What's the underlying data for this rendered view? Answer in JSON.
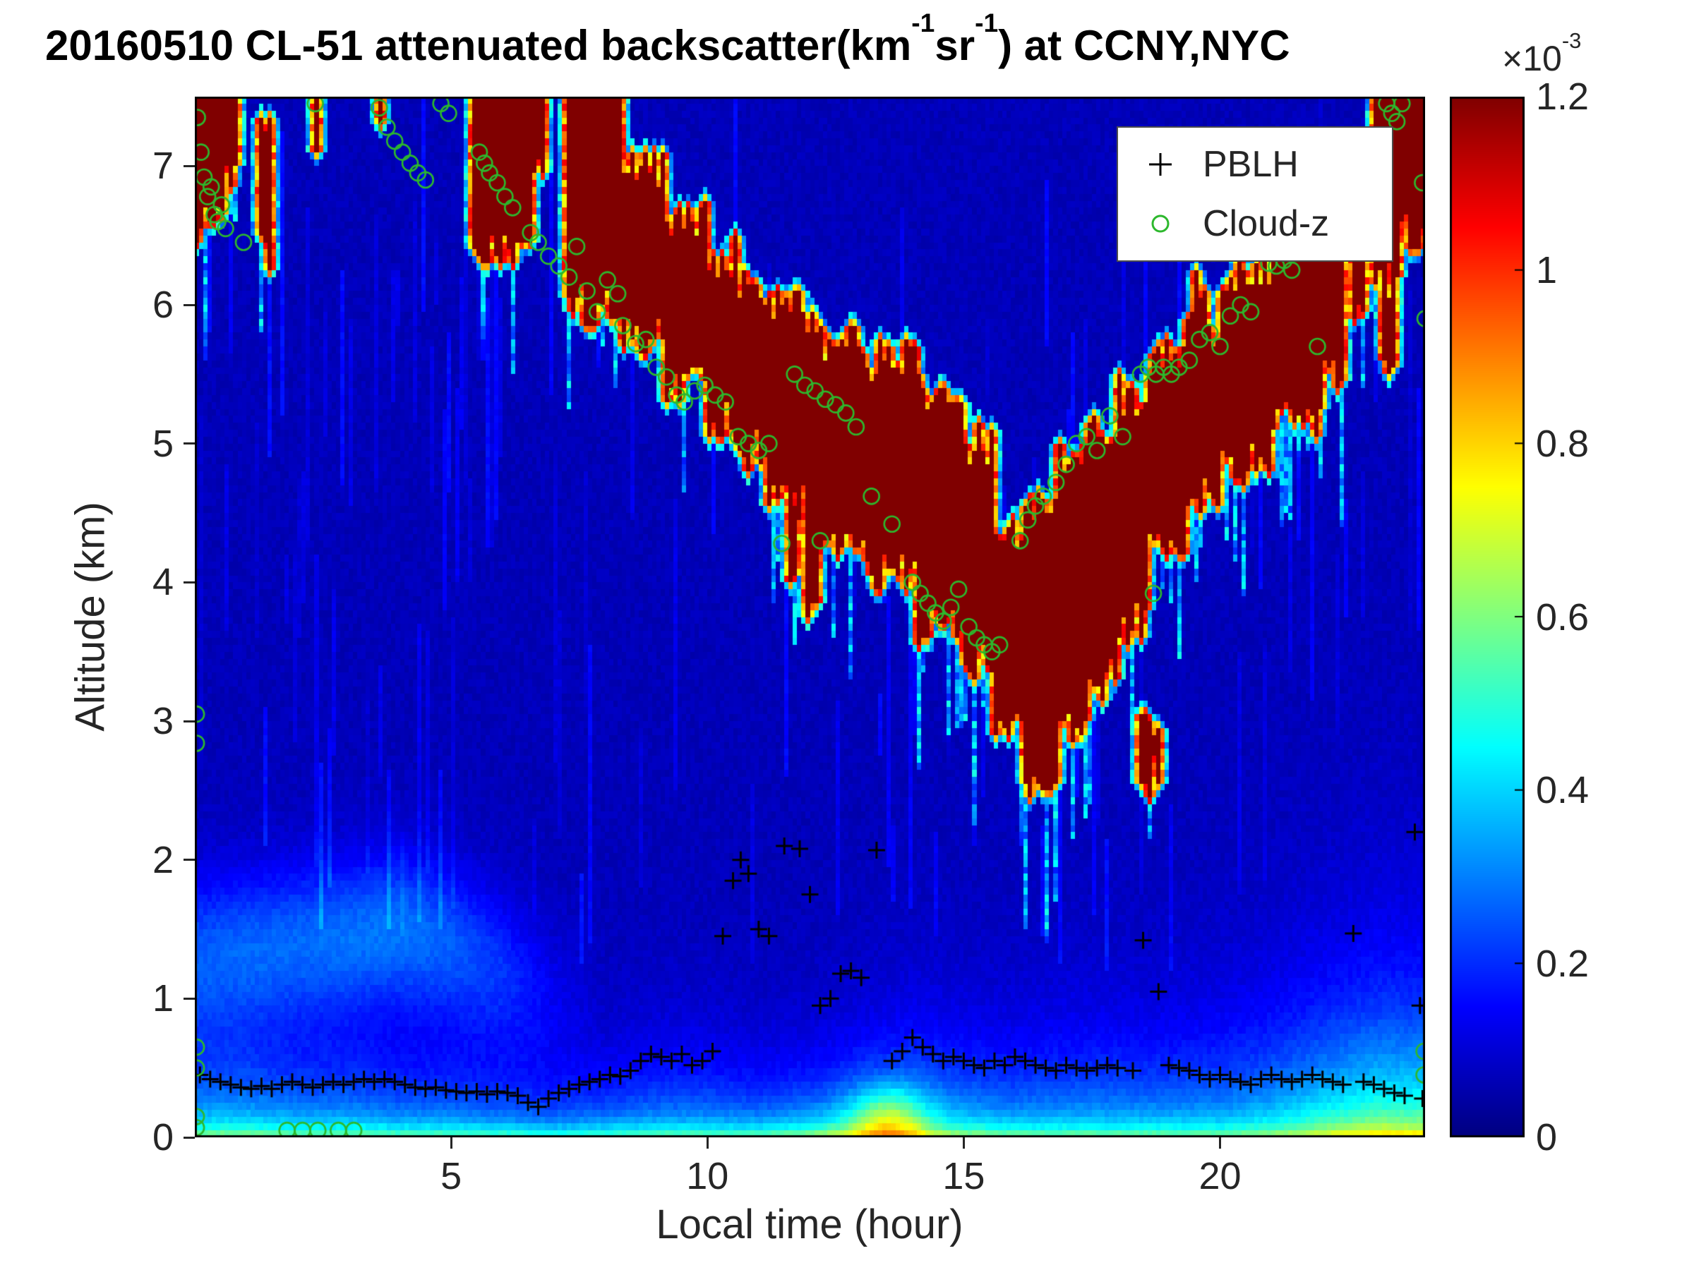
{
  "figure": {
    "title_parts": {
      "prefix": "20160510  CL-51 attenuated backscatter(km",
      "sup1": "-1",
      "mid": "sr",
      "sup2": "-1",
      "suffix": ") at CCNY,NYC"
    },
    "xlabel": "Local time (hour)",
    "ylabel": "Altitude (km)",
    "colorbar_scale_base": "×10",
    "colorbar_scale_sup": "-3"
  },
  "chart_data": {
    "type": "heatmap",
    "title": "20160510 CL-51 attenuated backscatter(km^-1 sr^-1) at CCNY,NYC",
    "xlabel": "Local time (hour)",
    "ylabel": "Altitude (km)",
    "x_range_hours": [
      0,
      24
    ],
    "y_range_km": [
      0,
      7.5
    ],
    "xticks": [
      5,
      10,
      15,
      20
    ],
    "yticks": [
      0,
      1,
      2,
      3,
      4,
      5,
      6,
      7
    ],
    "grid": false,
    "colormap": "jet",
    "colorbar": {
      "tick_values": [
        0,
        0.2,
        0.4,
        0.6,
        0.8,
        1,
        1.2
      ],
      "tick_labels": [
        "0",
        "0.2",
        "0.4",
        "0.6",
        "0.8",
        "1",
        "1.2"
      ],
      "scale_factor": "1e-3",
      "vmax_km_sr": 0.0012,
      "vmin_km_sr": 0
    },
    "legend": [
      {
        "label": "PBLH",
        "marker": "plus",
        "color": "#000000"
      },
      {
        "label": "Cloud-z",
        "marker": "circle",
        "color": "#2db82d"
      }
    ],
    "legend_position": "top-right-inside",
    "pblh_points_t_km": [
      [
        0.1,
        0.45
      ],
      [
        0.3,
        0.42
      ],
      [
        0.5,
        0.4
      ],
      [
        0.7,
        0.38
      ],
      [
        0.9,
        0.36
      ],
      [
        1.1,
        0.35
      ],
      [
        1.3,
        0.37
      ],
      [
        1.5,
        0.35
      ],
      [
        1.7,
        0.38
      ],
      [
        1.9,
        0.4
      ],
      [
        2.1,
        0.38
      ],
      [
        2.3,
        0.36
      ],
      [
        2.5,
        0.38
      ],
      [
        2.7,
        0.4
      ],
      [
        2.9,
        0.38
      ],
      [
        3.1,
        0.4
      ],
      [
        3.3,
        0.42
      ],
      [
        3.5,
        0.4
      ],
      [
        3.7,
        0.42
      ],
      [
        3.9,
        0.4
      ],
      [
        4.1,
        0.38
      ],
      [
        4.3,
        0.36
      ],
      [
        4.5,
        0.35
      ],
      [
        4.7,
        0.36
      ],
      [
        4.9,
        0.34
      ],
      [
        5.1,
        0.33
      ],
      [
        5.3,
        0.32
      ],
      [
        5.5,
        0.33
      ],
      [
        5.7,
        0.31
      ],
      [
        5.9,
        0.33
      ],
      [
        6.1,
        0.32
      ],
      [
        6.3,
        0.3
      ],
      [
        6.5,
        0.25
      ],
      [
        6.7,
        0.22
      ],
      [
        6.9,
        0.28
      ],
      [
        7.1,
        0.32
      ],
      [
        7.3,
        0.35
      ],
      [
        7.5,
        0.38
      ],
      [
        7.7,
        0.4
      ],
      [
        7.9,
        0.42
      ],
      [
        8.1,
        0.45
      ],
      [
        8.3,
        0.44
      ],
      [
        8.5,
        0.48
      ],
      [
        8.7,
        0.55
      ],
      [
        8.9,
        0.6
      ],
      [
        9.1,
        0.58
      ],
      [
        9.3,
        0.55
      ],
      [
        9.5,
        0.6
      ],
      [
        9.7,
        0.52
      ],
      [
        9.9,
        0.55
      ],
      [
        10.1,
        0.62
      ],
      [
        10.3,
        1.45
      ],
      [
        10.5,
        1.85
      ],
      [
        10.65,
        2.0
      ],
      [
        10.8,
        1.9
      ],
      [
        11.0,
        1.5
      ],
      [
        11.2,
        1.45
      ],
      [
        11.5,
        2.1
      ],
      [
        11.8,
        2.08
      ],
      [
        12.0,
        1.75
      ],
      [
        12.2,
        0.95
      ],
      [
        12.4,
        1.0
      ],
      [
        12.6,
        1.18
      ],
      [
        12.8,
        1.2
      ],
      [
        13.0,
        1.15
      ],
      [
        13.3,
        2.07
      ],
      [
        13.6,
        0.55
      ],
      [
        13.8,
        0.62
      ],
      [
        14.0,
        0.72
      ],
      [
        14.2,
        0.65
      ],
      [
        14.4,
        0.6
      ],
      [
        14.6,
        0.55
      ],
      [
        14.8,
        0.58
      ],
      [
        15.0,
        0.55
      ],
      [
        15.2,
        0.52
      ],
      [
        15.4,
        0.5
      ],
      [
        15.6,
        0.55
      ],
      [
        15.8,
        0.52
      ],
      [
        16.0,
        0.58
      ],
      [
        16.2,
        0.55
      ],
      [
        16.4,
        0.52
      ],
      [
        16.6,
        0.5
      ],
      [
        16.8,
        0.48
      ],
      [
        17.0,
        0.52
      ],
      [
        17.2,
        0.5
      ],
      [
        17.4,
        0.48
      ],
      [
        17.6,
        0.5
      ],
      [
        17.8,
        0.52
      ],
      [
        18.0,
        0.5
      ],
      [
        18.3,
        0.48
      ],
      [
        18.5,
        1.42
      ],
      [
        18.8,
        1.05
      ],
      [
        19.0,
        0.52
      ],
      [
        19.2,
        0.5
      ],
      [
        19.4,
        0.48
      ],
      [
        19.6,
        0.45
      ],
      [
        19.8,
        0.42
      ],
      [
        20.0,
        0.45
      ],
      [
        20.2,
        0.42
      ],
      [
        20.4,
        0.4
      ],
      [
        20.6,
        0.38
      ],
      [
        20.8,
        0.42
      ],
      [
        21.0,
        0.45
      ],
      [
        21.2,
        0.42
      ],
      [
        21.4,
        0.4
      ],
      [
        21.6,
        0.42
      ],
      [
        21.8,
        0.45
      ],
      [
        22.0,
        0.42
      ],
      [
        22.2,
        0.4
      ],
      [
        22.4,
        0.38
      ],
      [
        22.6,
        1.47
      ],
      [
        22.8,
        0.4
      ],
      [
        23.0,
        0.38
      ],
      [
        23.2,
        0.35
      ],
      [
        23.4,
        0.32
      ],
      [
        23.6,
        0.3
      ],
      [
        23.8,
        2.2
      ],
      [
        23.9,
        0.95
      ],
      [
        23.95,
        0.28
      ]
    ],
    "cloud_z_points_t_km": [
      [
        0.05,
        7.35
      ],
      [
        0.12,
        7.1
      ],
      [
        0.18,
        6.92
      ],
      [
        0.25,
        6.78
      ],
      [
        0.32,
        6.85
      ],
      [
        0.38,
        6.65
      ],
      [
        0.45,
        6.6
      ],
      [
        0.52,
        6.72
      ],
      [
        0.6,
        6.55
      ],
      [
        0.95,
        6.45
      ],
      [
        0.03,
        3.05
      ],
      [
        0.03,
        2.84
      ],
      [
        0.03,
        0.65
      ],
      [
        0.03,
        0.5
      ],
      [
        0.03,
        0.15
      ],
      [
        0.03,
        0.07
      ],
      [
        1.8,
        0.05
      ],
      [
        2.1,
        0.05
      ],
      [
        2.4,
        0.05
      ],
      [
        2.8,
        0.05
      ],
      [
        3.1,
        0.05
      ],
      [
        2.35,
        7.45
      ],
      [
        3.6,
        7.42
      ],
      [
        3.75,
        7.28
      ],
      [
        3.9,
        7.18
      ],
      [
        4.05,
        7.1
      ],
      [
        4.2,
        7.02
      ],
      [
        4.35,
        6.95
      ],
      [
        4.5,
        6.9
      ],
      [
        4.8,
        7.45
      ],
      [
        4.95,
        7.38
      ],
      [
        5.55,
        7.1
      ],
      [
        5.65,
        7.02
      ],
      [
        5.75,
        6.95
      ],
      [
        5.9,
        6.88
      ],
      [
        6.05,
        6.78
      ],
      [
        6.2,
        6.7
      ],
      [
        6.55,
        6.52
      ],
      [
        6.7,
        6.45
      ],
      [
        6.9,
        6.35
      ],
      [
        7.1,
        6.28
      ],
      [
        7.3,
        6.2
      ],
      [
        7.45,
        6.42
      ],
      [
        7.65,
        6.1
      ],
      [
        7.85,
        5.95
      ],
      [
        8.05,
        6.18
      ],
      [
        8.25,
        6.08
      ],
      [
        8.35,
        5.85
      ],
      [
        8.6,
        5.72
      ],
      [
        8.8,
        5.75
      ],
      [
        9.0,
        5.55
      ],
      [
        9.2,
        5.48
      ],
      [
        9.4,
        5.35
      ],
      [
        9.55,
        5.3
      ],
      [
        9.75,
        5.38
      ],
      [
        9.95,
        5.42
      ],
      [
        10.15,
        5.35
      ],
      [
        10.35,
        5.3
      ],
      [
        10.6,
        5.05
      ],
      [
        10.8,
        5.0
      ],
      [
        11.0,
        4.95
      ],
      [
        11.2,
        5.0
      ],
      [
        11.45,
        4.28
      ],
      [
        11.7,
        5.5
      ],
      [
        11.9,
        5.42
      ],
      [
        12.1,
        5.38
      ],
      [
        12.2,
        4.3
      ],
      [
        12.3,
        5.32
      ],
      [
        12.5,
        5.28
      ],
      [
        12.7,
        5.22
      ],
      [
        12.9,
        5.12
      ],
      [
        13.2,
        4.62
      ],
      [
        13.6,
        4.42
      ],
      [
        14.0,
        4.0
      ],
      [
        14.15,
        3.92
      ],
      [
        14.3,
        3.85
      ],
      [
        14.45,
        3.78
      ],
      [
        14.6,
        3.72
      ],
      [
        14.75,
        3.82
      ],
      [
        14.9,
        3.95
      ],
      [
        15.1,
        3.68
      ],
      [
        15.25,
        3.6
      ],
      [
        15.4,
        3.55
      ],
      [
        15.55,
        3.5
      ],
      [
        15.7,
        3.55
      ],
      [
        16.1,
        4.3
      ],
      [
        16.25,
        4.45
      ],
      [
        16.4,
        4.55
      ],
      [
        16.55,
        4.62
      ],
      [
        16.8,
        4.72
      ],
      [
        17.0,
        4.85
      ],
      [
        17.2,
        5.0
      ],
      [
        17.4,
        5.05
      ],
      [
        17.6,
        4.95
      ],
      [
        17.85,
        5.2
      ],
      [
        18.1,
        5.05
      ],
      [
        18.45,
        5.5
      ],
      [
        18.6,
        5.55
      ],
      [
        18.7,
        3.92
      ],
      [
        18.75,
        5.5
      ],
      [
        18.9,
        5.55
      ],
      [
        19.05,
        5.5
      ],
      [
        19.2,
        5.55
      ],
      [
        19.4,
        5.6
      ],
      [
        19.6,
        5.75
      ],
      [
        19.8,
        5.8
      ],
      [
        20.0,
        5.7
      ],
      [
        20.2,
        5.92
      ],
      [
        20.4,
        6.0
      ],
      [
        20.6,
        5.95
      ],
      [
        20.95,
        6.3
      ],
      [
        21.1,
        6.28
      ],
      [
        21.25,
        6.32
      ],
      [
        21.4,
        6.25
      ],
      [
        21.9,
        5.7
      ],
      [
        23.25,
        7.45
      ],
      [
        23.35,
        7.38
      ],
      [
        23.45,
        7.32
      ],
      [
        23.55,
        7.45
      ],
      [
        23.95,
        6.88
      ],
      [
        24.0,
        5.9
      ],
      [
        23.98,
        0.62
      ],
      [
        23.98,
        0.45
      ]
    ],
    "cloud_regions_t0_t1_zbase_ztop": [
      [
        0.0,
        0.6,
        6.55,
        7.5
      ],
      [
        0.6,
        0.85,
        6.9,
        7.5
      ],
      [
        1.25,
        1.5,
        6.35,
        7.25
      ],
      [
        2.3,
        2.45,
        7.05,
        7.5
      ],
      [
        3.55,
        3.7,
        7.3,
        7.5
      ],
      [
        5.45,
        6.55,
        6.35,
        7.5
      ],
      [
        6.55,
        6.8,
        6.9,
        7.5
      ],
      [
        7.25,
        8.35,
        6.0,
        7.5
      ],
      [
        8.35,
        9.2,
        5.75,
        7.0
      ],
      [
        9.2,
        10.0,
        5.4,
        6.6
      ],
      [
        10.0,
        10.6,
        5.15,
        6.35
      ],
      [
        10.6,
        11.2,
        4.95,
        6.1
      ],
      [
        11.2,
        11.9,
        4.6,
        5.95
      ],
      [
        11.55,
        11.75,
        4.0,
        4.6
      ],
      [
        11.9,
        12.15,
        3.75,
        5.8
      ],
      [
        12.15,
        13.1,
        4.35,
        5.75
      ],
      [
        13.1,
        14.1,
        4.05,
        5.6
      ],
      [
        14.1,
        15.0,
        3.7,
        5.35
      ],
      [
        15.0,
        15.6,
        3.45,
        5.0
      ],
      [
        15.6,
        16.2,
        3.0,
        4.4
      ],
      [
        16.2,
        16.8,
        2.55,
        4.5
      ],
      [
        16.8,
        17.4,
        2.9,
        4.9
      ],
      [
        17.4,
        18.0,
        3.3,
        5.1
      ],
      [
        18.0,
        18.6,
        3.7,
        5.35
      ],
      [
        18.45,
        18.85,
        2.6,
        3.05
      ],
      [
        18.6,
        19.3,
        4.3,
        5.6
      ],
      [
        19.3,
        20.0,
        4.6,
        5.85
      ],
      [
        19.5,
        19.75,
        5.85,
        6.1
      ],
      [
        20.0,
        21.0,
        4.85,
        6.2
      ],
      [
        21.0,
        22.0,
        5.15,
        6.45
      ],
      [
        22.0,
        22.4,
        5.5,
        6.5
      ],
      [
        22.6,
        22.8,
        5.9,
        6.6
      ],
      [
        23.0,
        23.5,
        6.25,
        7.5
      ],
      [
        23.2,
        23.45,
        5.6,
        6.2
      ],
      [
        23.5,
        24.0,
        6.5,
        7.5
      ]
    ],
    "boundary_layer": {
      "hours": [
        0,
        1,
        2,
        3,
        4,
        5,
        6,
        7,
        8,
        9,
        10,
        11,
        12,
        13,
        14,
        15,
        16,
        17,
        18,
        19,
        20,
        21,
        22,
        23,
        24
      ],
      "surface_intensity": [
        0.32,
        0.32,
        0.3,
        0.3,
        0.28,
        0.28,
        0.26,
        0.24,
        0.26,
        0.28,
        0.28,
        0.28,
        0.34,
        0.4,
        0.42,
        0.34,
        0.3,
        0.3,
        0.3,
        0.3,
        0.3,
        0.34,
        0.42,
        0.48,
        0.48
      ],
      "scale_height_km": [
        0.5,
        0.5,
        0.45,
        0.45,
        0.4,
        0.4,
        0.35,
        0.3,
        0.35,
        0.4,
        0.4,
        0.35,
        0.35,
        0.4,
        0.45,
        0.45,
        0.45,
        0.5,
        0.5,
        0.5,
        0.55,
        0.6,
        0.65,
        0.7,
        0.7
      ],
      "residual_intensity": [
        0.14,
        0.15,
        0.16,
        0.17,
        0.18,
        0.15,
        0.11,
        0.05,
        0,
        0,
        0,
        0,
        0,
        0,
        0,
        0,
        0,
        0,
        0,
        0,
        0,
        0,
        0,
        0,
        0
      ],
      "residual_center_km": [
        1.3,
        1.35,
        1.4,
        1.45,
        1.5,
        1.4,
        1.2,
        1.0,
        1,
        1,
        1,
        1,
        1,
        1,
        1,
        1,
        1,
        1,
        1,
        1,
        1,
        1,
        1,
        1,
        1
      ],
      "surface_plume": {
        "t": 13.5,
        "z_km": 0.12,
        "amp": 0.22,
        "t_sigma": 0.7,
        "z_sigma": 0.25
      }
    }
  }
}
